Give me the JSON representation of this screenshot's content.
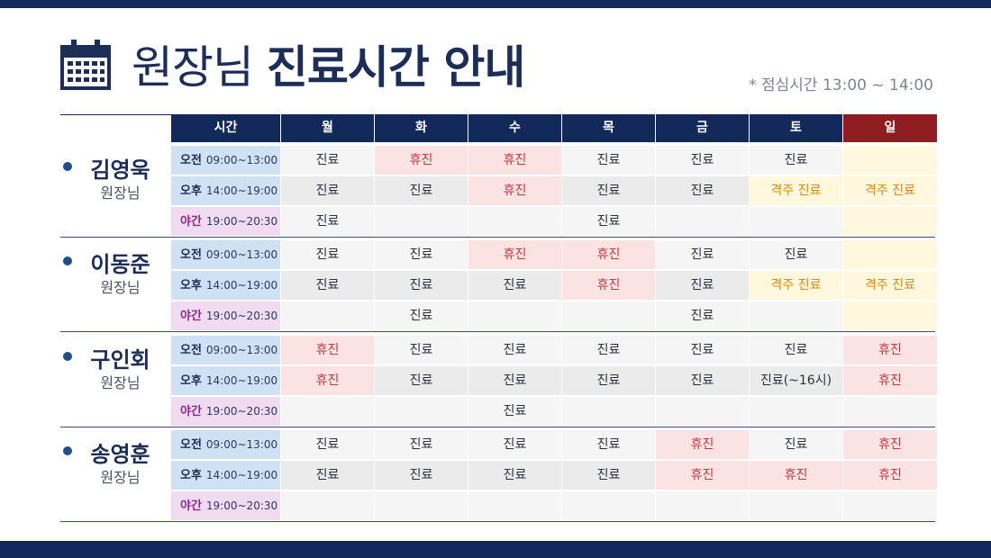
{
  "title": {
    "light": "원장님",
    "bold": "진료시간 안내"
  },
  "lunch_note": "* 점심시간 13:00 ~ 14:00",
  "headers": [
    "시간",
    "월",
    "화",
    "수",
    "목",
    "금",
    "토",
    "일"
  ],
  "slots": [
    {
      "label": "오전",
      "time": "09:00~13:00"
    },
    {
      "label": "오후",
      "time": "14:00~19:00"
    },
    {
      "label": "야간",
      "time": "19:00~20:30"
    }
  ],
  "doctors": [
    {
      "name": "김영욱",
      "role": "원장님",
      "rows": [
        [
          "진료",
          "휴진",
          "휴진",
          "진료",
          "진료",
          "진료",
          ""
        ],
        [
          "진료",
          "진료",
          "휴진",
          "진료",
          "진료",
          "격주 진료",
          "격주 진료"
        ],
        [
          "진료",
          "",
          "",
          "진료",
          "",
          "",
          ""
        ]
      ]
    },
    {
      "name": "이동준",
      "role": "원장님",
      "rows": [
        [
          "진료",
          "진료",
          "휴진",
          "휴진",
          "진료",
          "진료",
          ""
        ],
        [
          "진료",
          "진료",
          "진료",
          "휴진",
          "진료",
          "격주 진료",
          "격주 진료"
        ],
        [
          "",
          "진료",
          "",
          "",
          "진료",
          "",
          ""
        ]
      ]
    },
    {
      "name": "구인회",
      "role": "원장님",
      "rows": [
        [
          "휴진",
          "진료",
          "진료",
          "진료",
          "진료",
          "진료",
          "휴진"
        ],
        [
          "휴진",
          "진료",
          "진료",
          "진료",
          "진료",
          "진료(~16시)",
          "휴진"
        ],
        [
          "",
          "",
          "진료",
          "",
          "",
          "",
          ""
        ]
      ]
    },
    {
      "name": "송영훈",
      "role": "원장님",
      "rows": [
        [
          "진료",
          "진료",
          "진료",
          "진료",
          "휴진",
          "진료",
          "휴진"
        ],
        [
          "진료",
          "진료",
          "진료",
          "진료",
          "휴진",
          "휴진",
          "휴진"
        ],
        [
          "",
          "",
          "",
          "",
          "",
          "",
          ""
        ]
      ]
    }
  ],
  "colors": {
    "navy": "#12295a",
    "sunday": "#8e1c20",
    "off_text": "#c0393e",
    "alt_text": "#e08b00"
  }
}
